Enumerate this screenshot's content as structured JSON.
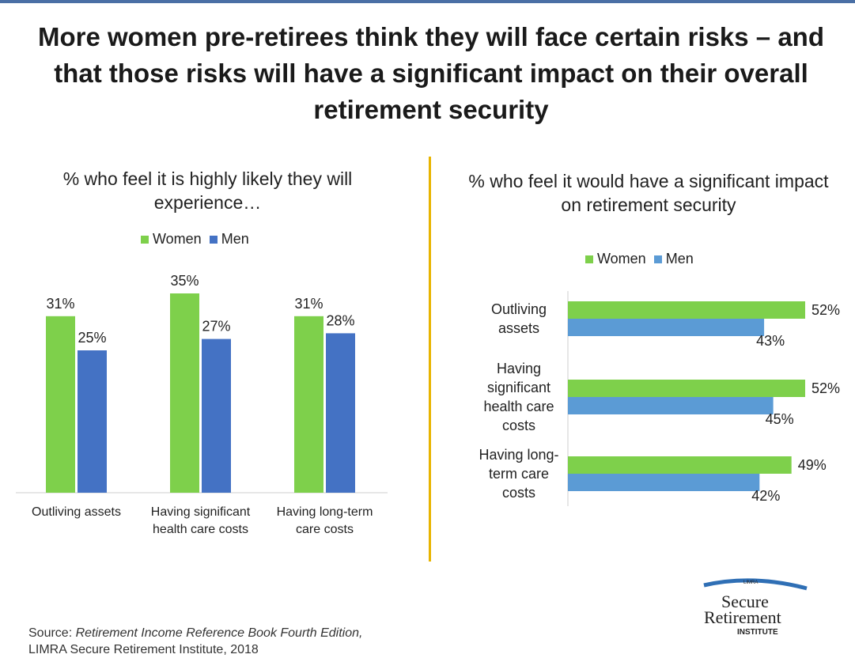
{
  "title": "More women pre-retirees think they will face certain risks – and that those risks will have a significant impact on their overall retirement security",
  "colors": {
    "women_left": "#7ed04b",
    "men_left": "#4472c4",
    "women_right": "#7ed04b",
    "men_right": "#5b9bd5",
    "divider": "#e8b400"
  },
  "chart_data": [
    {
      "type": "bar",
      "title": "% who feel it is highly likely they will experience…",
      "categories": [
        "Outliving assets",
        "Having significant health care costs",
        "Having long-term care costs"
      ],
      "category_lines": [
        [
          "Outliving assets"
        ],
        [
          "Having significant",
          "health care costs"
        ],
        [
          "Having long-term",
          "care costs"
        ]
      ],
      "series": [
        {
          "name": "Women",
          "values": [
            31,
            35,
            31
          ],
          "labels": [
            "31%",
            "35%",
            "31%"
          ]
        },
        {
          "name": "Men",
          "values": [
            25,
            27,
            28
          ],
          "labels": [
            "25%",
            "27%",
            "28%"
          ]
        }
      ],
      "ylim": [
        0,
        40
      ],
      "legend": "top"
    },
    {
      "type": "bar",
      "orientation": "horizontal",
      "title": "% who feel it would have a significant impact on retirement security",
      "categories": [
        "Outliving assets",
        "Having significant health care costs",
        "Having long-term care costs"
      ],
      "category_lines": [
        [
          "Outliving",
          "assets"
        ],
        [
          "Having",
          "significant",
          "health care",
          "costs"
        ],
        [
          "Having long-",
          "term care",
          "costs"
        ]
      ],
      "series": [
        {
          "name": "Women",
          "values": [
            52,
            52,
            49
          ],
          "labels": [
            "52%",
            "52%",
            "49%"
          ]
        },
        {
          "name": "Men",
          "values": [
            43,
            45,
            42
          ],
          "labels": [
            "43%",
            "45%",
            "42%"
          ]
        }
      ],
      "xlim": [
        0,
        56
      ],
      "legend": "top"
    }
  ],
  "source": {
    "prefix": "Source: ",
    "book": "Retirement Income Reference Book Fourth Edition,",
    "line2": "LIMRA Secure Retirement Institute, 2018"
  },
  "logo": {
    "top": "LIMRA",
    "word1": "Secure",
    "word2": "Retirement",
    "word3": "INSTITUTE"
  }
}
